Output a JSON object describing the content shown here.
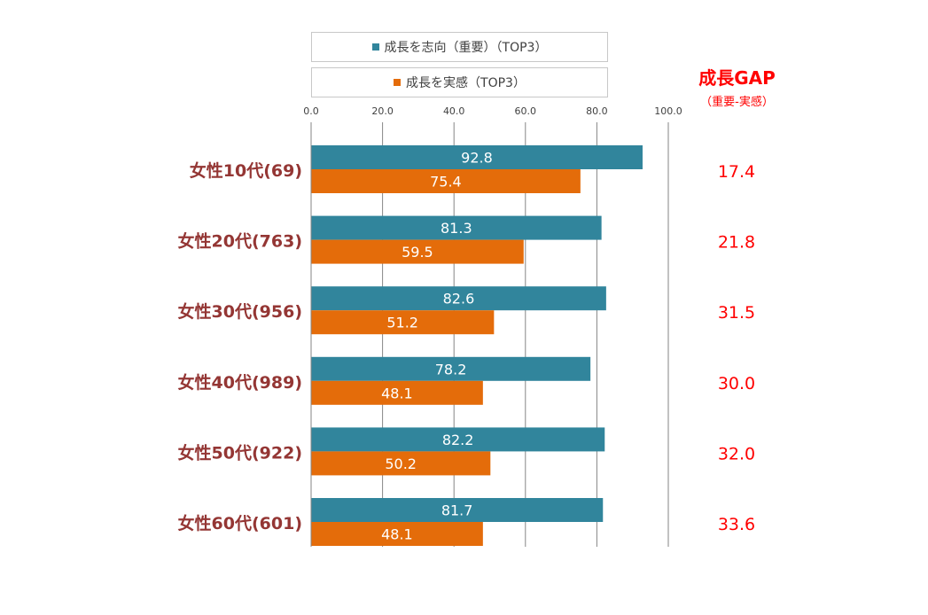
{
  "chart_data": {
    "type": "bar",
    "orientation": "horizontal",
    "categories": [
      "女性10代(69)",
      "女性20代(763)",
      "女性30代(956)",
      "女性40代(989)",
      "女性50代(922)",
      "女性60代(601)"
    ],
    "series": [
      {
        "name": "成長を志向（重要）（TOP3）",
        "color": "#31859c",
        "values": [
          92.8,
          81.3,
          82.6,
          78.2,
          82.2,
          81.7
        ]
      },
      {
        "name": "成長を実感（TOP3）",
        "color": "#e46c0a",
        "values": [
          75.4,
          59.5,
          51.2,
          48.1,
          50.2,
          48.1
        ]
      }
    ],
    "xlim": [
      0,
      100
    ],
    "x_ticks": [
      "0.0",
      "20.0",
      "40.0",
      "60.0",
      "80.0",
      "100.0"
    ],
    "grid": true,
    "legend_position": "top",
    "gap_column": {
      "title": "成長GAP",
      "subtitle": "（重要-実感）",
      "values": [
        "17.4",
        "21.8",
        "31.5",
        "30.0",
        "32.0",
        "33.6"
      ]
    }
  },
  "colors": {
    "category_label": "#943634",
    "gap_text": "#ff0000"
  }
}
